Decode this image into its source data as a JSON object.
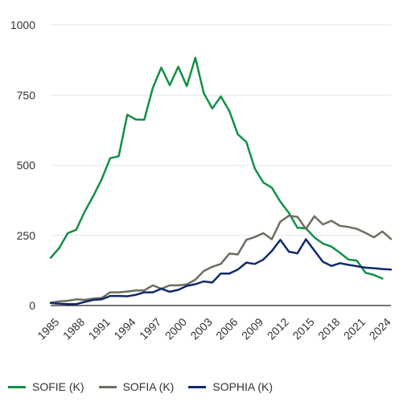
{
  "chart_data": {
    "type": "line",
    "title": "",
    "xlabel": "",
    "ylabel": "",
    "ylim": [
      0,
      1000
    ],
    "yticks": [
      0,
      250,
      500,
      750,
      1000
    ],
    "xticks": [
      1985,
      1988,
      1991,
      1994,
      1997,
      2000,
      2003,
      2006,
      2009,
      2012,
      2015,
      2018,
      2021,
      2024
    ],
    "x": [
      1985,
      1986,
      1987,
      1988,
      1989,
      1990,
      1991,
      1992,
      1993,
      1994,
      1995,
      1996,
      1997,
      1998,
      1999,
      2000,
      2001,
      2002,
      2003,
      2004,
      2005,
      2006,
      2007,
      2008,
      2009,
      2010,
      2011,
      2012,
      2013,
      2014,
      2015,
      2016,
      2017,
      2018,
      2019,
      2020,
      2021,
      2022,
      2023,
      2024,
      2025
    ],
    "grid": "horizontal",
    "legend_position": "bottom-left",
    "series": [
      {
        "name": "SOFIE (K)",
        "color": "#119144",
        "values": [
          170,
          205,
          258,
          270,
          335,
          390,
          450,
          525,
          532,
          680,
          663,
          662,
          775,
          848,
          785,
          851,
          782,
          883,
          757,
          702,
          745,
          693,
          610,
          583,
          488,
          438,
          420,
          370,
          330,
          277,
          275,
          243,
          221,
          210,
          188,
          164,
          160,
          117,
          109,
          96,
          null
        ]
      },
      {
        "name": "SOFIA (K)",
        "color": "#6f6d61",
        "values": [
          10,
          15,
          17,
          22,
          20,
          25,
          27,
          47,
          47,
          50,
          54,
          54,
          72,
          60,
          72,
          72,
          75,
          92,
          123,
          138,
          148,
          185,
          182,
          234,
          244,
          258,
          236,
          299,
          320,
          316,
          273,
          318,
          289,
          302,
          284,
          280,
          273,
          259,
          243,
          264,
          237
        ]
      },
      {
        "name": "SOPHIA (K)",
        "color": "#0f2a6b",
        "values": [
          9,
          7,
          5,
          5,
          13,
          20,
          22,
          34,
          34,
          33,
          38,
          47,
          47,
          60,
          49,
          56,
          70,
          76,
          86,
          82,
          114,
          114,
          128,
          153,
          148,
          164,
          194,
          234,
          192,
          186,
          236,
          196,
          156,
          141,
          151,
          145,
          140,
          135,
          133,
          130,
          128
        ]
      }
    ]
  }
}
